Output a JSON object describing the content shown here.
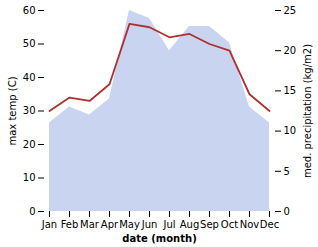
{
  "chart_data": {
    "type": "line",
    "xlabel": "date (month)",
    "ylabel": "max temp (C)",
    "y2label": "med. precipitation (kg/m2)",
    "categories": [
      "Jan",
      "Feb",
      "Mar",
      "Apr",
      "May",
      "Jun",
      "Jul",
      "Aug",
      "Sep",
      "Oct",
      "Nov",
      "Dec"
    ],
    "series": [
      {
        "type": "area",
        "axis": "y2",
        "color": "#c8d4f0",
        "values": [
          11,
          13,
          12,
          14,
          25,
          24,
          20,
          23,
          23,
          21,
          13,
          11
        ]
      },
      {
        "type": "line",
        "color": "#b03030",
        "values": [
          30,
          34,
          33,
          38,
          56,
          55,
          52,
          53,
          50,
          48,
          35,
          30
        ]
      }
    ],
    "ylim": [
      0,
      60
    ],
    "yticks": [
      0,
      10,
      20,
      30,
      40,
      50,
      60
    ],
    "y2lim": [
      0,
      25
    ],
    "y2ticks": [
      0,
      5,
      10,
      15,
      20,
      25
    ]
  }
}
